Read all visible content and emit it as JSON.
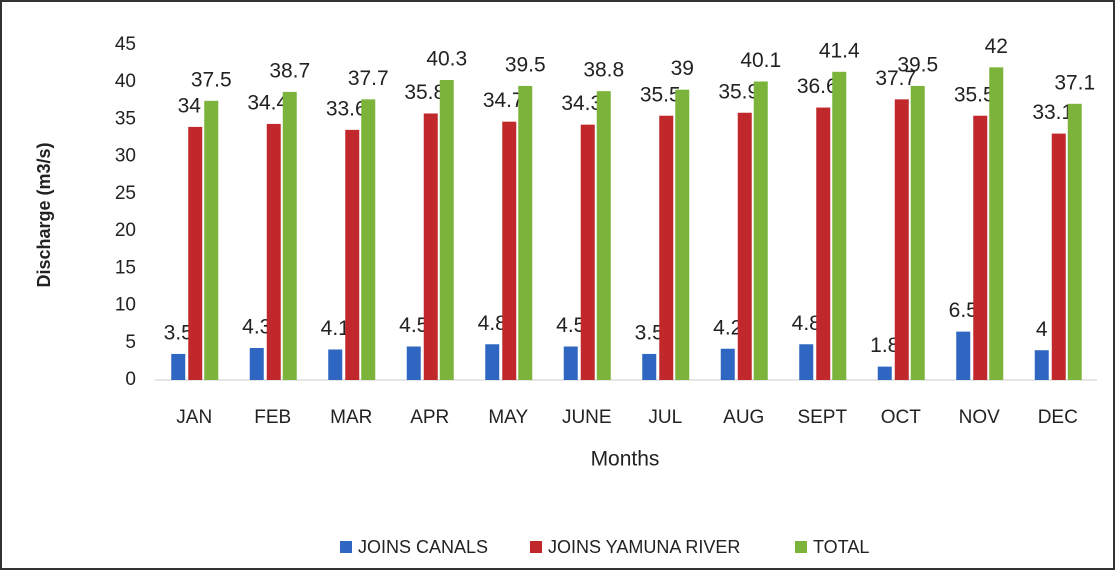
{
  "chart_data": {
    "type": "bar",
    "y_label": "Discharge (m3/s)",
    "x_label": "Months",
    "categories": [
      "JAN",
      "FEB",
      "MAR",
      "APR",
      "MAY",
      "JUNE",
      "JUL",
      "AUG",
      "SEPT",
      "OCT",
      "NOV",
      "DEC"
    ],
    "series": [
      {
        "name": "JOINS CANALS",
        "color": "#2f66c2",
        "values": [
          3.5,
          4.3,
          4.1,
          4.5,
          4.8,
          4.5,
          3.5,
          4.2,
          4.8,
          1.8,
          6.5,
          4
        ]
      },
      {
        "name": "JOINS YAMUNA RIVER",
        "color": "#c0282b",
        "values": [
          34,
          34.4,
          33.6,
          35.8,
          34.7,
          34.3,
          35.5,
          35.9,
          36.6,
          37.7,
          35.5,
          33.1
        ]
      },
      {
        "name": "TOTAL",
        "color": "#7bb33b",
        "values": [
          37.5,
          38.7,
          37.7,
          40.3,
          39.5,
          38.8,
          39,
          40.1,
          41.4,
          39.5,
          42,
          37.1
        ]
      }
    ],
    "ylim": [
      0,
      45
    ],
    "yticks": [
      0,
      5,
      10,
      15,
      20,
      25,
      30,
      35,
      40,
      45
    ],
    "grid": false,
    "legend": "bottom"
  }
}
